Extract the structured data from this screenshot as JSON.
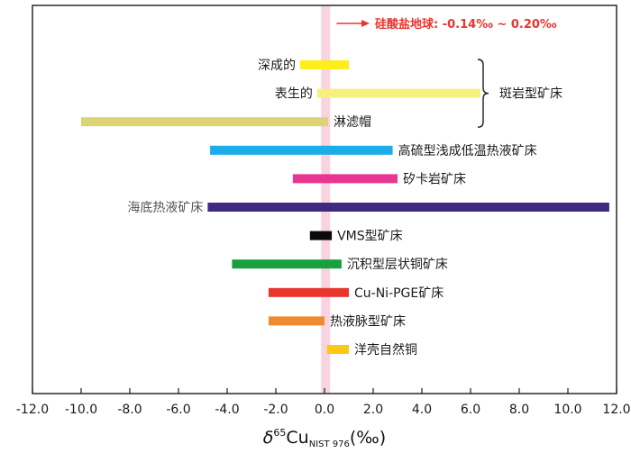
{
  "chart_data": {
    "type": "bar",
    "orientation": "horizontal-range",
    "title": "",
    "xlabel": {
      "symbol": "δ",
      "superscript": "65",
      "base": "Cu",
      "subscript": "NIST 976",
      "unit": "(‰)"
    },
    "xlim": [
      -12,
      12
    ],
    "xticks": [
      -12,
      -10,
      -8,
      -6,
      -4,
      -2,
      0,
      2,
      4,
      6,
      8,
      10,
      12
    ],
    "xtick_labels": [
      "-12.0",
      "-10.0",
      "-8.0",
      "-6.0",
      "-4.0",
      "-2.0",
      "0.0",
      "2.0",
      "4.0",
      "6.0",
      "8.0",
      "10.0",
      "12.0"
    ],
    "silicate_earth": {
      "label": "硅酸盐地球: -0.14‰ ~ 0.20‰",
      "min": -0.14,
      "max": 0.2,
      "color": "#f9d3e0",
      "arrow_color": "#e8352e"
    },
    "bracket_group": "斑岩型矿床",
    "series": [
      {
        "name": "深成的",
        "min": -1.0,
        "max": 1.0,
        "color": "#ffee1a",
        "label_side": "left"
      },
      {
        "name": "表生的",
        "min": -0.3,
        "max": 6.4,
        "color": "#f6f07d",
        "label_side": "left"
      },
      {
        "name": "淋滤帽",
        "min": -10.0,
        "max": 0.15,
        "color": "#dcd375",
        "label_side": "right"
      },
      {
        "name": "高硫型浅成低温热液矿床",
        "min": -4.7,
        "max": 2.8,
        "color": "#1badea",
        "label_side": "right"
      },
      {
        "name": "矽卡岩矿床",
        "min": -1.3,
        "max": 3.0,
        "color": "#e8358f",
        "label_side": "right"
      },
      {
        "name": "海底热液矿床",
        "min": -4.8,
        "max": 11.7,
        "color": "#3e2a80",
        "label_side": "left"
      },
      {
        "name": "VMS型矿床",
        "min": -0.6,
        "max": 0.3,
        "color": "#0a0a0a",
        "label_side": "right"
      },
      {
        "name": "沉积型层状铜矿床",
        "min": -3.8,
        "max": 0.7,
        "color": "#18a040",
        "label_side": "right"
      },
      {
        "name": "Cu-Ni-PGE矿床",
        "min": -2.3,
        "max": 1.0,
        "color": "#e8352e",
        "label_side": "right"
      },
      {
        "name": "热液脉型矿床",
        "min": -2.3,
        "max": 0.0,
        "color": "#f08a30",
        "label_side": "right"
      },
      {
        "name": "洋壳自然铜",
        "min": 0.1,
        "max": 1.0,
        "color": "#ffc815",
        "label_side": "right"
      }
    ]
  }
}
